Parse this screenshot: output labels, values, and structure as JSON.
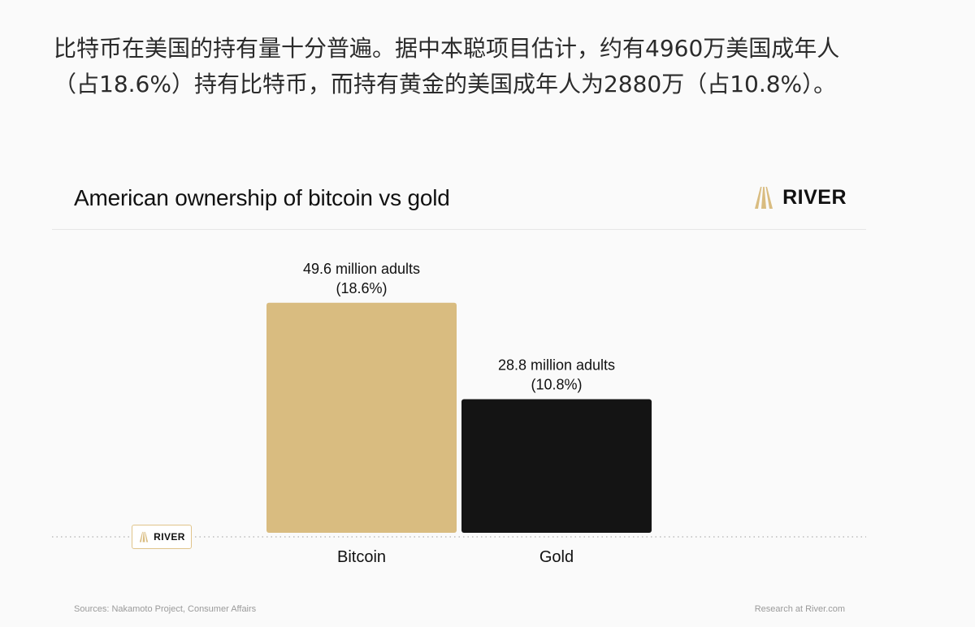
{
  "intro_text": "比特币在美国的持有量十分普遍。据中本聪项目估计，约有4960万美国成年人（占18.6%）持有比特币，而持有黄金的美国成年人为2880万（占10.8%）。",
  "brand": {
    "name": "RIVER",
    "logo_icon": "river-mountain-logo-icon",
    "logo_color": "#d9bc80"
  },
  "footer": {
    "sources": "Sources: Nakamoto Project, Consumer Affairs",
    "credit": "Research at River.com"
  },
  "chart_data": {
    "type": "bar",
    "title": "American ownership of bitcoin vs gold",
    "xlabel": "",
    "ylabel": "",
    "categories": [
      "Bitcoin",
      "Gold"
    ],
    "values": [
      49.6,
      28.8
    ],
    "unit": "million adults",
    "value_labels": [
      "49.6 million adults",
      "28.8 million adults"
    ],
    "percent_labels": [
      "(18.6%)",
      "(10.8%)"
    ],
    "colors": [
      "#d9bc80",
      "#141414"
    ],
    "ylim": [
      0,
      55
    ],
    "grid": false,
    "legend": "none"
  }
}
